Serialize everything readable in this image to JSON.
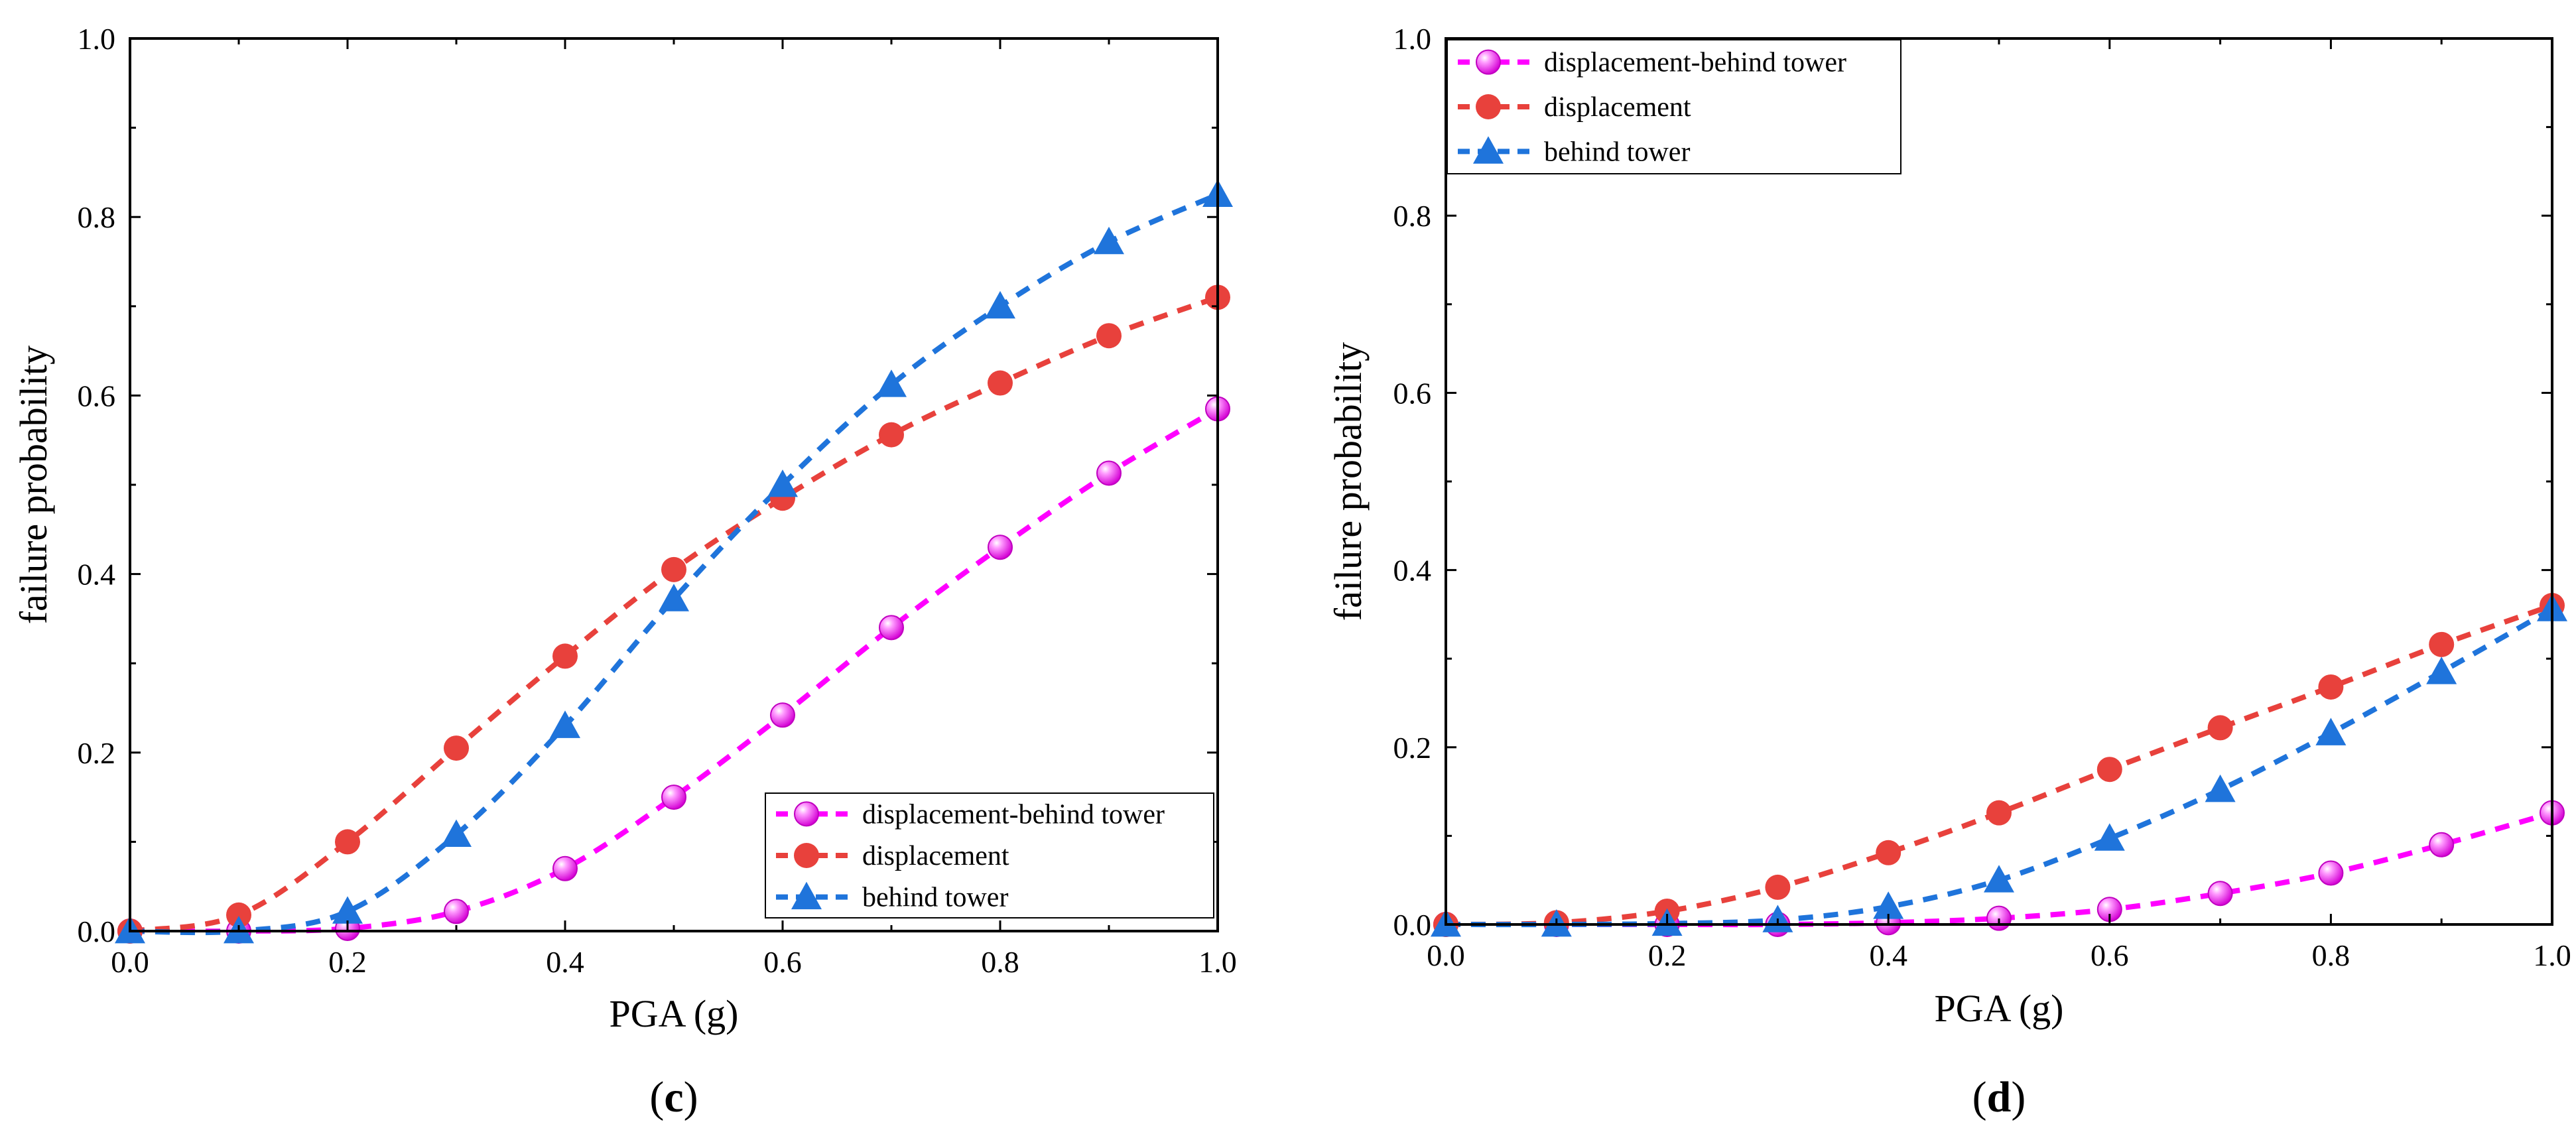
{
  "figure": {
    "panels": [
      {
        "label_open": "(",
        "label_letter": "c",
        "label_close": ")",
        "legend_position": "bottom-right"
      },
      {
        "label_open": "(",
        "label_letter": "d",
        "label_close": ")",
        "legend_position": "top-left"
      }
    ]
  },
  "colors": {
    "magenta": "#ff00ff",
    "red": "#e8413c",
    "blue": "#1f74db",
    "axis": "#000000"
  },
  "chart_data": [
    {
      "type": "line",
      "title": "",
      "xlabel": "PGA (g)",
      "ylabel": "failure probability",
      "xlim": [
        0.0,
        1.0
      ],
      "ylim": [
        0.0,
        1.0
      ],
      "xticks": [
        "0.0",
        "0.2",
        "0.4",
        "0.6",
        "0.8",
        "1.0"
      ],
      "yticks": [
        "0.0",
        "0.2",
        "0.4",
        "0.6",
        "0.8",
        "1.0"
      ],
      "x": [
        0.0,
        0.1,
        0.2,
        0.3,
        0.4,
        0.5,
        0.6,
        0.7,
        0.8,
        0.9,
        1.0
      ],
      "series": [
        {
          "name": "displacement-behind tower",
          "marker": "sphere",
          "color": "#ff00ff",
          "values": [
            0.0,
            0.0,
            0.003,
            0.022,
            0.07,
            0.15,
            0.242,
            0.34,
            0.43,
            0.513,
            0.585
          ]
        },
        {
          "name": "displacement",
          "marker": "circle",
          "color": "#e8413c",
          "values": [
            0.0,
            0.018,
            0.1,
            0.205,
            0.308,
            0.405,
            0.485,
            0.556,
            0.614,
            0.667,
            0.71
          ]
        },
        {
          "name": "behind tower",
          "marker": "triangle",
          "color": "#1f74db",
          "values": [
            0.0,
            0.0,
            0.022,
            0.108,
            0.23,
            0.372,
            0.5,
            0.612,
            0.7,
            0.772,
            0.825
          ]
        }
      ],
      "legend": "bottom-right",
      "grid": false
    },
    {
      "type": "line",
      "title": "",
      "xlabel": "PGA (g)",
      "ylabel": "failure probability",
      "xlim": [
        0.0,
        1.0
      ],
      "ylim": [
        0.0,
        1.0
      ],
      "xticks": [
        "0.0",
        "0.2",
        "0.4",
        "0.6",
        "0.8",
        "1.0"
      ],
      "yticks": [
        "0.0",
        "0.2",
        "0.4",
        "0.6",
        "0.8",
        "1.0"
      ],
      "x": [
        0.0,
        0.1,
        0.2,
        0.3,
        0.4,
        0.5,
        0.6,
        0.7,
        0.8,
        0.9,
        1.0
      ],
      "series": [
        {
          "name": "displacement-behind tower",
          "marker": "sphere",
          "color": "#ff00ff",
          "values": [
            0.0,
            0.0,
            0.0,
            0.0,
            0.002,
            0.007,
            0.017,
            0.035,
            0.058,
            0.09,
            0.126
          ]
        },
        {
          "name": "displacement",
          "marker": "circle",
          "color": "#e8413c",
          "values": [
            0.0,
            0.002,
            0.015,
            0.042,
            0.081,
            0.126,
            0.175,
            0.222,
            0.268,
            0.316,
            0.36
          ]
        },
        {
          "name": "behind tower",
          "marker": "triangle",
          "color": "#1f74db",
          "values": [
            0.0,
            0.0,
            0.001,
            0.005,
            0.02,
            0.05,
            0.097,
            0.152,
            0.216,
            0.285,
            0.356
          ]
        }
      ],
      "legend": "top-left",
      "grid": false
    }
  ]
}
